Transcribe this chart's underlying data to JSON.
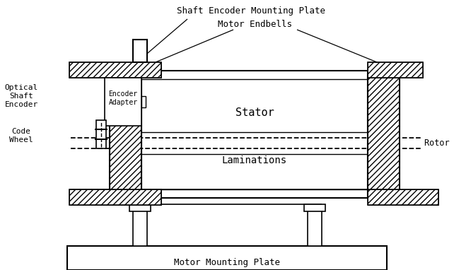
{
  "bg_color": "#ffffff",
  "labels": {
    "shaft_encoder_mounting_plate": "Shaft Encoder Mounting Plate",
    "motor_endbells": "Motor Endbells",
    "optical_shaft_encoder": "Optical\nShaft\nEncoder",
    "encoder_adapter": "Encoder\nAdapter",
    "stator": "Stator",
    "rotor_shaft": "Rotor Shaft",
    "laminations": "Laminations",
    "code_wheel": "Code\nWheel",
    "motor_mounting_plate": "Motor Mounting Plate"
  },
  "figsize": [
    6.42,
    3.82
  ],
  "dpi": 100
}
